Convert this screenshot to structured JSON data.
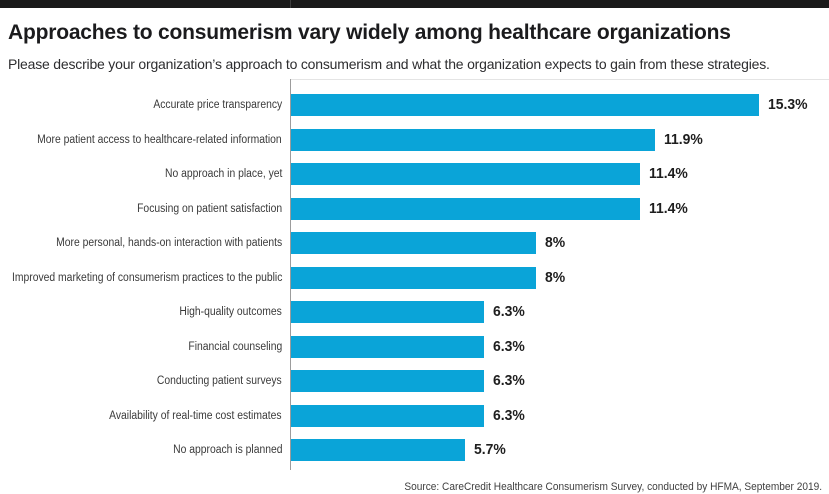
{
  "window": {
    "top_bar_color": "#1a1a1a"
  },
  "header": {
    "title": "Approaches to consumerism vary widely among healthcare organizations",
    "subtitle": "Please describe your organization’s approach to consumerism and what the organization expects to gain from these strategies."
  },
  "chart_data": {
    "type": "bar",
    "orientation": "horizontal",
    "title": "Approaches to consumerism vary widely among healthcare organizations",
    "subtitle": "Please describe your organization’s approach to consumerism and what the organization expects to gain from these strategies.",
    "categories": [
      "Accurate price transparency",
      "More patient access to healthcare-related information",
      "No approach in place, yet",
      "Focusing on patient satisfaction",
      "More personal, hands-on interaction with patients",
      "Improved marketing of consumerism practices to the public",
      "High-quality outcomes",
      "Financial counseling",
      "Conducting patient surveys",
      "Availability of real-time cost estimates",
      "No approach is planned"
    ],
    "values": [
      15.3,
      11.9,
      11.4,
      11.4,
      8,
      8,
      6.3,
      6.3,
      6.3,
      6.3,
      5.7
    ],
    "value_labels": [
      "15.3%",
      "11.9%",
      "11.4%",
      "11.4%",
      "8%",
      "8%",
      "6.3%",
      "6.3%",
      "6.3%",
      "6.3%",
      "5.7%"
    ],
    "xlim": [
      0,
      15.3
    ],
    "bar_color": "#0aa4d8",
    "axis_color": "#9c9c9c",
    "grid": false,
    "legend": false,
    "data_labels": "outside-end"
  },
  "footer": {
    "source": "Source: CareCredit Healthcare Consumerism Survey, conducted by HFMA, September 2019."
  }
}
